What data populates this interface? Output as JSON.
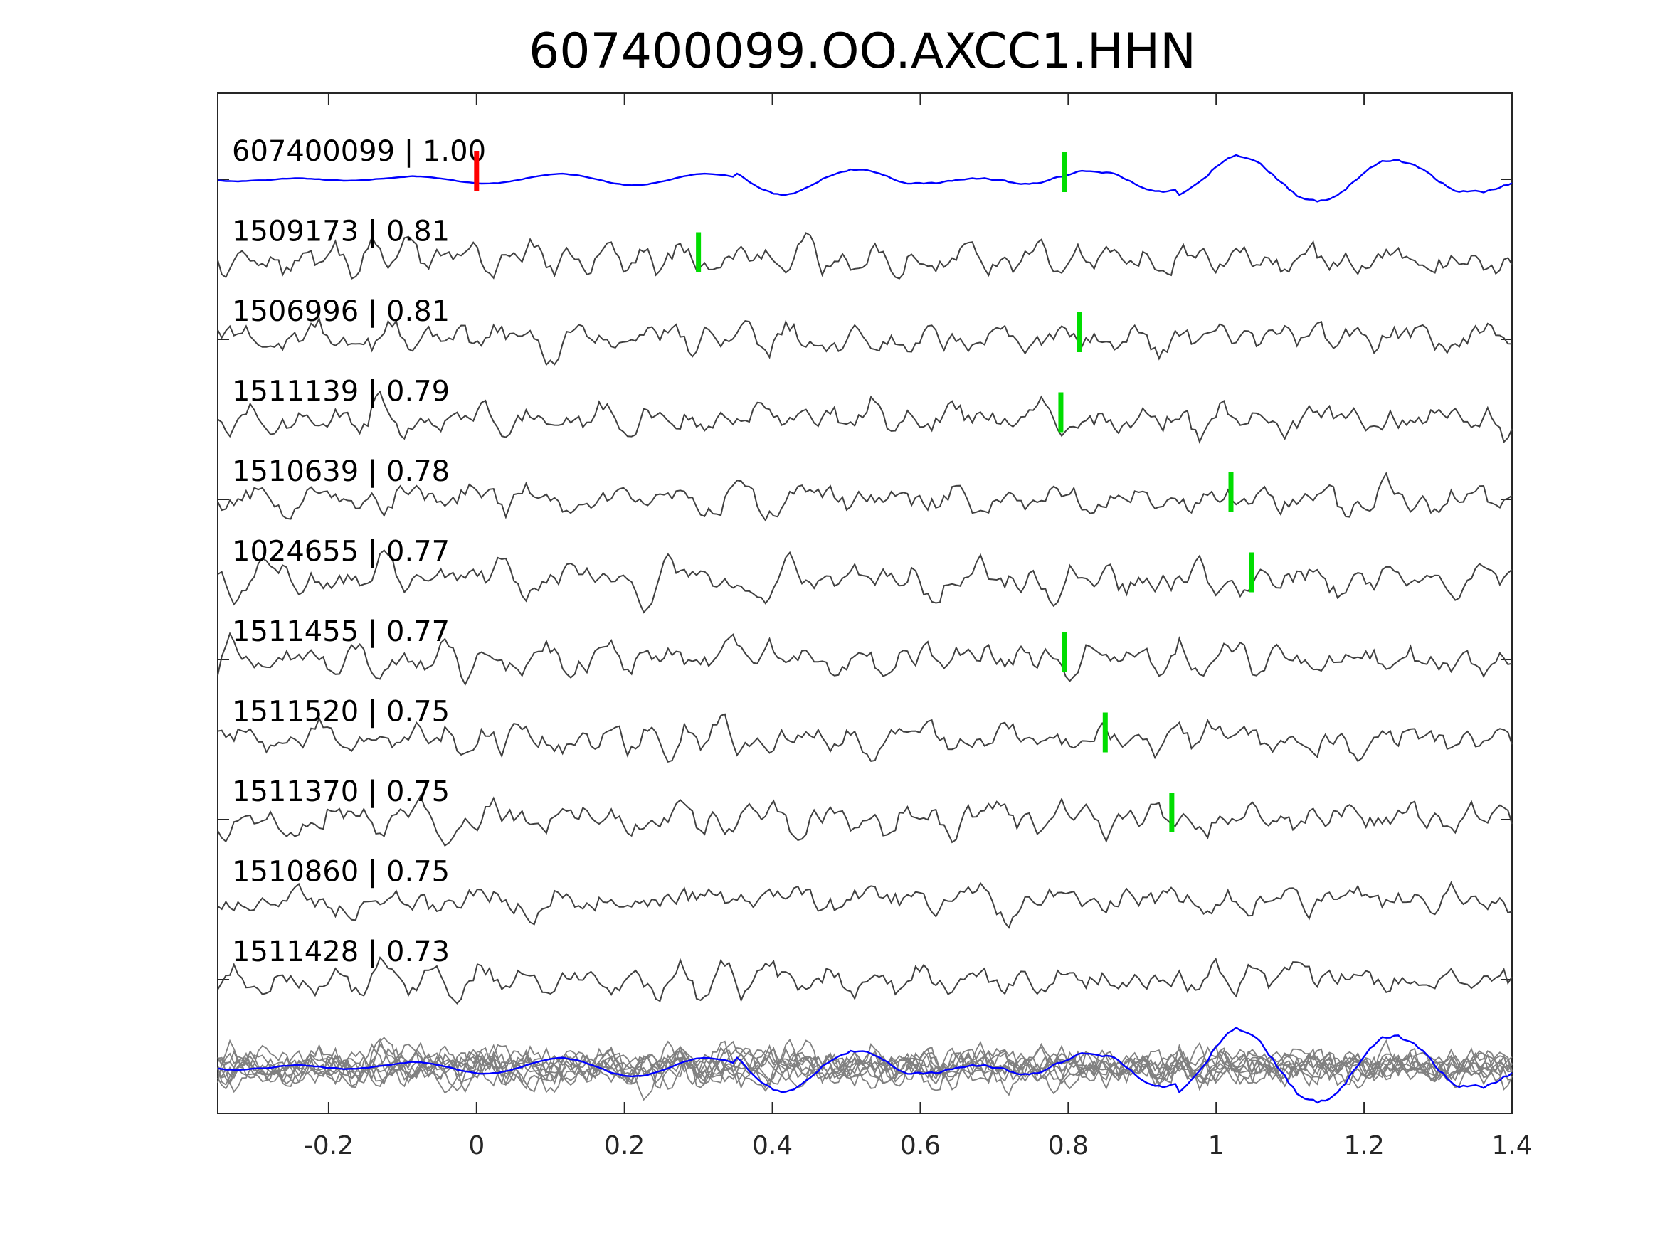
{
  "chart_data": {
    "type": "line",
    "title": "607400099.OO.AXCC1.HHN",
    "xlabel": "",
    "ylabel": "",
    "xlim": [
      -0.35,
      1.4
    ],
    "x_ticks": [
      -0.2,
      0,
      0.2,
      0.4,
      0.6,
      0.8,
      1,
      1.2,
      1.4
    ],
    "x_tick_labels": [
      "-0.2",
      "0",
      "0.2",
      "0.4",
      "0.6",
      "0.8",
      "1",
      "1.2",
      "1.4"
    ],
    "grid": false,
    "colors": {
      "template": "#0000ff",
      "trace": "#404040",
      "stack": "#808080",
      "origin_marker": "#ff0000",
      "pick_marker": "#00dd00",
      "axes": "#262626"
    },
    "series": [
      {
        "id": "607400099",
        "label": "607400099 | 1.00",
        "cc": 1.0,
        "pick": 0.795,
        "origin": 0,
        "template": true
      },
      {
        "id": "1509173",
        "label": "1509173 | 0.81",
        "cc": 0.81,
        "pick": 0.3
      },
      {
        "id": "1506996",
        "label": "1506996 | 0.81",
        "cc": 0.81,
        "pick": 0.815
      },
      {
        "id": "1511139",
        "label": "1511139 | 0.79",
        "cc": 0.79,
        "pick": 0.79
      },
      {
        "id": "1510639",
        "label": "1510639 | 0.78",
        "cc": 0.78,
        "pick": 1.02
      },
      {
        "id": "1024655",
        "label": "1024655 | 0.77",
        "cc": 0.77,
        "pick": 1.048
      },
      {
        "id": "1511455",
        "label": "1511455 | 0.77",
        "cc": 0.77,
        "pick": 0.795
      },
      {
        "id": "1511520",
        "label": "1511520 | 0.75",
        "cc": 0.75,
        "pick": 0.85
      },
      {
        "id": "1511370",
        "label": "1511370 | 0.75",
        "cc": 0.75,
        "pick": 0.94
      },
      {
        "id": "1510860",
        "label": "1510860 | 0.75",
        "cc": 0.75
      },
      {
        "id": "1511428",
        "label": "1511428 | 0.73",
        "cc": 0.73
      }
    ]
  }
}
